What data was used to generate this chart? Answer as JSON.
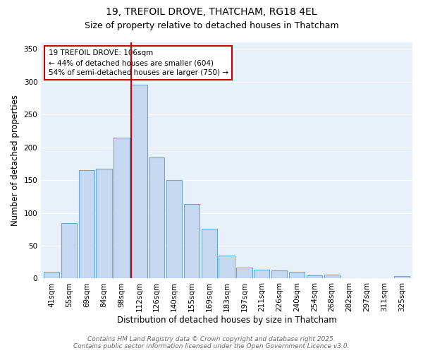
{
  "title_line1": "19, TREFOIL DROVE, THATCHAM, RG18 4EL",
  "title_line2": "Size of property relative to detached houses in Thatcham",
  "xlabel": "Distribution of detached houses by size in Thatcham",
  "ylabel": "Number of detached properties",
  "bar_labels": [
    "41sqm",
    "55sqm",
    "69sqm",
    "84sqm",
    "98sqm",
    "112sqm",
    "126sqm",
    "140sqm",
    "155sqm",
    "169sqm",
    "183sqm",
    "197sqm",
    "211sqm",
    "226sqm",
    "240sqm",
    "254sqm",
    "268sqm",
    "282sqm",
    "297sqm",
    "311sqm",
    "325sqm"
  ],
  "bar_values": [
    10,
    84,
    165,
    167,
    215,
    295,
    185,
    150,
    113,
    76,
    35,
    17,
    13,
    12,
    10,
    5,
    6,
    1,
    1,
    1,
    4
  ],
  "bar_color": "#c5d8f0",
  "bar_edge_color": "#6aaad4",
  "vline_index": 5,
  "annotation_text": "19 TREFOIL DROVE: 106sqm\n← 44% of detached houses are smaller (604)\n54% of semi-detached houses are larger (750) →",
  "annotation_box_color": "white",
  "annotation_box_edge": "#cc0000",
  "vline_color": "#cc0000",
  "ylim": [
    0,
    360
  ],
  "yticks": [
    0,
    50,
    100,
    150,
    200,
    250,
    300,
    350
  ],
  "background_color": "#e8f0fa",
  "grid_color": "white",
  "footer_line1": "Contains HM Land Registry data © Crown copyright and database right 2025.",
  "footer_line2": "Contains public sector information licensed under the Open Government Licence v3.0.",
  "title_fontsize": 10,
  "subtitle_fontsize": 9,
  "axis_label_fontsize": 8.5,
  "tick_fontsize": 7.5,
  "annotation_fontsize": 7.5,
  "footer_fontsize": 6.5
}
